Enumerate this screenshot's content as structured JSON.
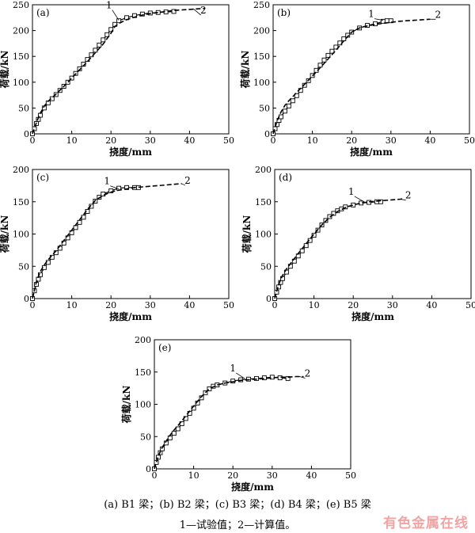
{
  "chart_data": [
    {
      "type": "line",
      "panel_label": "(a)",
      "xlabel": "挠度/mm",
      "ylabel": "荷载/kN",
      "xlim": [
        0,
        50
      ],
      "ylim": [
        0,
        250
      ],
      "xticks": [
        0,
        10,
        20,
        30,
        40,
        50
      ],
      "yticks": [
        0,
        50,
        100,
        150,
        200,
        250
      ],
      "grid": false,
      "series": [
        {
          "name": "1",
          "style": "solid-square-markers",
          "x": [
            0,
            0.5,
            1,
            1.5,
            2,
            3,
            4,
            5,
            6,
            7,
            8,
            9,
            10,
            11,
            12,
            13,
            14,
            15,
            16,
            17,
            18,
            19,
            20,
            21,
            22,
            24,
            26,
            28,
            30,
            32,
            34,
            36
          ],
          "y": [
            0,
            10,
            20,
            28,
            36,
            50,
            60,
            68,
            76,
            84,
            92,
            100,
            108,
            117,
            126,
            135,
            144,
            153,
            162,
            172,
            182,
            192,
            202,
            212,
            219,
            225,
            229,
            232,
            234,
            235,
            236,
            237
          ]
        },
        {
          "name": "2",
          "style": "dashed",
          "x": [
            0,
            1,
            2,
            3,
            4,
            5,
            6,
            8,
            10,
            12,
            14,
            16,
            18,
            20,
            21,
            22,
            24,
            26,
            28,
            30,
            32,
            34,
            36,
            38,
            40,
            42,
            44
          ],
          "y": [
            0,
            22,
            40,
            54,
            63,
            70,
            77,
            92,
            108,
            124,
            140,
            157,
            174,
            195,
            208,
            214,
            221,
            226,
            230,
            233,
            235,
            237,
            239,
            240,
            241,
            242,
            243
          ]
        }
      ],
      "annotations": [
        "1",
        "2"
      ]
    },
    {
      "type": "line",
      "panel_label": "(b)",
      "xlabel": "挠度/mm",
      "ylabel": "荷载/kN",
      "xlim": [
        0,
        50
      ],
      "ylim": [
        0,
        250
      ],
      "xticks": [
        0,
        10,
        20,
        30,
        40,
        50
      ],
      "yticks": [
        0,
        50,
        100,
        150,
        200,
        250
      ],
      "grid": false,
      "series": [
        {
          "name": "1",
          "style": "solid-square-markers",
          "x": [
            0,
            0.5,
            1,
            1.5,
            2,
            3,
            4,
            5,
            6,
            7,
            8,
            9,
            10,
            11,
            12,
            13,
            14,
            15,
            16,
            17,
            18,
            19,
            20,
            22,
            24,
            26,
            28,
            29,
            30
          ],
          "y": [
            0,
            10,
            18,
            26,
            33,
            44,
            54,
            64,
            74,
            84,
            94,
            103,
            113,
            123,
            133,
            143,
            152,
            160,
            168,
            176,
            184,
            191,
            197,
            205,
            210,
            213,
            218,
            219,
            219
          ]
        },
        {
          "name": "2",
          "style": "dashed",
          "x": [
            0,
            1,
            2,
            3,
            4,
            5,
            6,
            8,
            10,
            12,
            14,
            16,
            18,
            20,
            22,
            24,
            26,
            28,
            30,
            32,
            34,
            36,
            38,
            40
          ],
          "y": [
            0,
            25,
            42,
            55,
            64,
            72,
            80,
            96,
            112,
            128,
            145,
            162,
            180,
            197,
            205,
            209,
            212,
            214,
            216,
            218,
            219,
            220,
            221,
            222
          ]
        }
      ],
      "annotations": [
        "1",
        "2"
      ]
    },
    {
      "type": "line",
      "panel_label": "(c)",
      "xlabel": "挠度/mm",
      "ylabel": "荷载/kN",
      "xlim": [
        0,
        50
      ],
      "ylim": [
        0,
        200
      ],
      "xticks": [
        0,
        10,
        20,
        30,
        40,
        50
      ],
      "yticks": [
        0,
        50,
        100,
        150,
        200
      ],
      "grid": false,
      "series": [
        {
          "name": "1",
          "style": "solid-square-markers",
          "x": [
            0,
            0.5,
            1,
            1.5,
            2,
            3,
            4,
            5,
            6,
            7,
            8,
            9,
            10,
            11,
            12,
            13,
            14,
            15,
            16,
            17,
            18,
            20,
            22,
            24,
            26,
            27
          ],
          "y": [
            0,
            12,
            22,
            30,
            37,
            48,
            56,
            64,
            71,
            78,
            86,
            94,
            102,
            110,
            118,
            126,
            135,
            143,
            151,
            157,
            162,
            167,
            171,
            172,
            172,
            172
          ]
        },
        {
          "name": "2",
          "style": "dashed",
          "x": [
            0,
            1,
            2,
            3,
            4,
            5,
            6,
            8,
            10,
            12,
            14,
            16,
            18,
            20,
            22,
            24,
            26,
            28,
            30,
            32,
            34,
            36,
            38
          ],
          "y": [
            0,
            26,
            42,
            52,
            60,
            67,
            74,
            90,
            106,
            122,
            138,
            152,
            160,
            165,
            168,
            170,
            172,
            173,
            174,
            175,
            176,
            177,
            178
          ]
        }
      ],
      "annotations": [
        "1",
        "2"
      ]
    },
    {
      "type": "line",
      "panel_label": "(d)",
      "xlabel": "挠度/mm",
      "ylabel": "荷载/kN",
      "xlim": [
        0,
        50
      ],
      "ylim": [
        0,
        200
      ],
      "xticks": [
        0,
        10,
        20,
        30,
        40,
        50
      ],
      "yticks": [
        0,
        50,
        100,
        150,
        200
      ],
      "grid": false,
      "series": [
        {
          "name": "1",
          "style": "solid-square-markers",
          "x": [
            0,
            0.5,
            1,
            1.5,
            2,
            3,
            4,
            5,
            6,
            7,
            8,
            9,
            10,
            11,
            12,
            13,
            14,
            15,
            16,
            17,
            18,
            20,
            22,
            24,
            26,
            27
          ],
          "y": [
            0,
            10,
            18,
            25,
            31,
            41,
            50,
            58,
            66,
            74,
            82,
            90,
            98,
            106,
            114,
            121,
            127,
            132,
            136,
            139,
            142,
            145,
            148,
            149,
            150,
            150
          ]
        },
        {
          "name": "2",
          "style": "dashed",
          "x": [
            0,
            1,
            2,
            3,
            4,
            5,
            6,
            8,
            10,
            12,
            14,
            16,
            18,
            20,
            22,
            24,
            26,
            28,
            30,
            32,
            33
          ],
          "y": [
            0,
            22,
            36,
            46,
            54,
            62,
            70,
            85,
            100,
            114,
            126,
            135,
            141,
            145,
            148,
            150,
            151,
            152,
            153,
            154,
            155
          ]
        }
      ],
      "annotations": [
        "1",
        "2"
      ]
    },
    {
      "type": "line",
      "panel_label": "(e)",
      "xlabel": "挠度/mm",
      "ylabel": "荷载/kN",
      "xlim": [
        0,
        50
      ],
      "ylim": [
        0,
        200
      ],
      "xticks": [
        0,
        10,
        20,
        30,
        40,
        50
      ],
      "yticks": [
        0,
        50,
        100,
        150,
        200
      ],
      "grid": false,
      "series": [
        {
          "name": "1",
          "style": "solid-square-markers",
          "x": [
            0,
            0.5,
            1,
            1.5,
            2,
            3,
            4,
            5,
            6,
            7,
            8,
            9,
            10,
            11,
            12,
            13,
            14,
            15,
            16,
            18,
            20,
            22,
            24,
            26,
            28,
            30,
            32,
            34
          ],
          "y": [
            0,
            10,
            18,
            25,
            31,
            40,
            48,
            55,
            62,
            70,
            78,
            86,
            94,
            102,
            110,
            118,
            124,
            128,
            130,
            133,
            136,
            138,
            139,
            140,
            141,
            142,
            141,
            140
          ]
        },
        {
          "name": "2",
          "style": "dashed",
          "x": [
            0,
            1,
            2,
            3,
            4,
            5,
            6,
            8,
            10,
            12,
            14,
            16,
            18,
            20,
            22,
            24,
            26,
            28,
            30,
            32,
            34,
            36,
            38
          ],
          "y": [
            0,
            20,
            33,
            43,
            52,
            60,
            67,
            82,
            97,
            112,
            124,
            130,
            133,
            135,
            137,
            138,
            139,
            140,
            141,
            142,
            142,
            143,
            143
          ]
        }
      ],
      "annotations": [
        "1",
        "2"
      ]
    }
  ],
  "caption": {
    "line1": "(a) B1 梁；(b) B2 梁；(c) B3 梁；(d) B4 梁；(e) B5 梁",
    "line2": "1—试验值；2—计算值。"
  },
  "watermark": "有色金属在线"
}
